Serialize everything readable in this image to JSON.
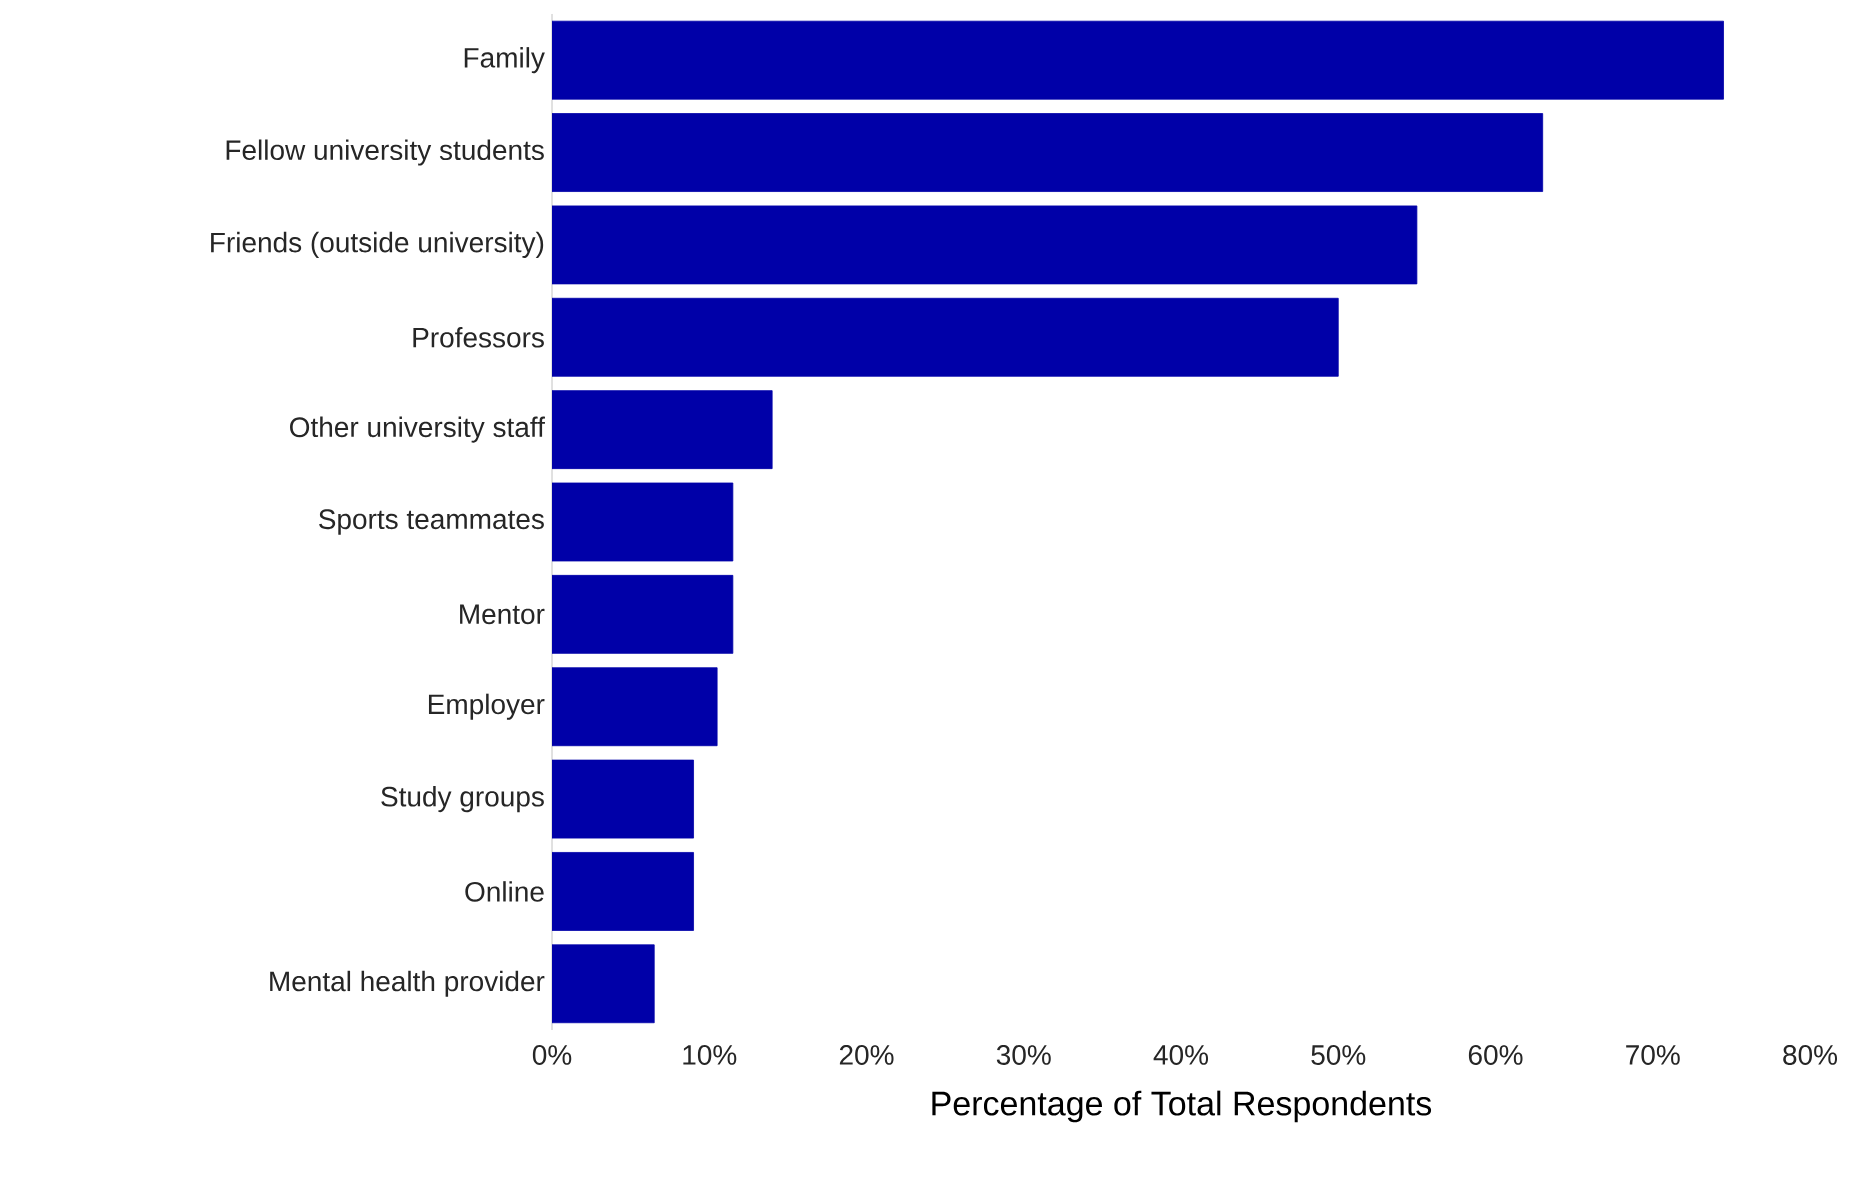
{
  "chart_data": {
    "type": "bar",
    "orientation": "horizontal",
    "xlabel": "Percentage of Total Respondents",
    "categories": [
      "Family",
      "Fellow university students",
      "Friends (outside university)",
      "Professors",
      "Other university staff",
      "Sports teammates",
      "Mentor",
      "Employer",
      "Study groups",
      "Online",
      "Mental health provider"
    ],
    "values": [
      74.5,
      63,
      55,
      50,
      14,
      11.5,
      11.5,
      10.5,
      9,
      9,
      6.5
    ],
    "color": "#0000a8",
    "xlim": [
      0,
      80
    ],
    "xticks": [
      {
        "value": 0,
        "label": "0%"
      },
      {
        "value": 10,
        "label": "10%"
      },
      {
        "value": 20,
        "label": "20%"
      },
      {
        "value": 30,
        "label": "30%"
      },
      {
        "value": 40,
        "label": "40%"
      },
      {
        "value": 50,
        "label": "50%"
      },
      {
        "value": 60,
        "label": "60%"
      },
      {
        "value": 70,
        "label": "70%"
      },
      {
        "value": 80,
        "label": "80%"
      }
    ],
    "grid": false
  }
}
